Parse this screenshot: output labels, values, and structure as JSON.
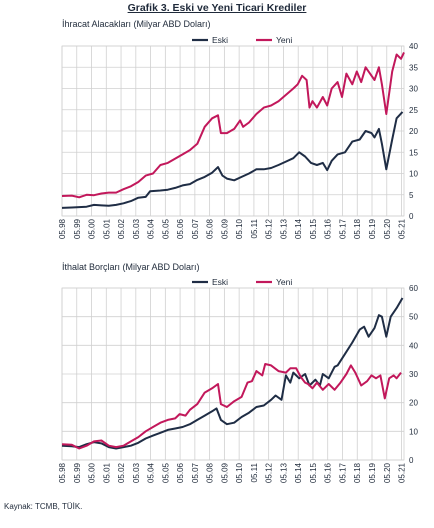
{
  "main_title": "Grafik 3. Eski ve Yeni Ticari Krediler",
  "source": "Kaynak: TCMB, TÜİK.",
  "colors": {
    "eski": "#1f2d45",
    "yeni": "#c2185b",
    "grid": "#d0d0d0"
  },
  "chart_data": [
    {
      "type": "line",
      "title": "İhracat Alacakları (Milyar ABD Doları)",
      "x_ticks": [
        "05.98",
        "05.99",
        "05.00",
        "05.01",
        "05.02",
        "05.03",
        "05.04",
        "05.05",
        "05.06",
        "05.07",
        "05.08",
        "05.09",
        "05.10",
        "05.11",
        "05.12",
        "05.13",
        "05.14",
        "05.15",
        "05.16",
        "05.17",
        "05.18",
        "05.19",
        "05.20",
        "05.21"
      ],
      "y_ticks": [
        "0",
        "5",
        "10",
        "15",
        "20",
        "25",
        "30",
        "35",
        "40"
      ],
      "ylim": [
        0,
        40
      ],
      "xlim": [
        1998.333,
        2021.5
      ],
      "legend": [
        "Eski",
        "Yeni"
      ],
      "series": [
        {
          "name": "Eski",
          "points": [
            [
              1998.33,
              1.9
            ],
            [
              1999.0,
              2.0
            ],
            [
              1999.5,
              2.1
            ],
            [
              2000.0,
              2.2
            ],
            [
              2000.5,
              2.6
            ],
            [
              2001.0,
              2.5
            ],
            [
              2001.5,
              2.4
            ],
            [
              2002.0,
              2.6
            ],
            [
              2002.5,
              3.0
            ],
            [
              2003.0,
              3.5
            ],
            [
              2003.5,
              4.3
            ],
            [
              2004.0,
              4.5
            ],
            [
              2004.3,
              5.8
            ],
            [
              2005.0,
              6.0
            ],
            [
              2005.5,
              6.2
            ],
            [
              2006.0,
              6.6
            ],
            [
              2006.5,
              7.2
            ],
            [
              2007.0,
              7.5
            ],
            [
              2007.5,
              8.5
            ],
            [
              2008.0,
              9.2
            ],
            [
              2008.5,
              10.2
            ],
            [
              2008.9,
              11.5
            ],
            [
              2009.2,
              9.5
            ],
            [
              2009.5,
              8.8
            ],
            [
              2010.0,
              8.4
            ],
            [
              2010.5,
              9.2
            ],
            [
              2011.0,
              10.0
            ],
            [
              2011.5,
              11.0
            ],
            [
              2012.0,
              11.0
            ],
            [
              2012.5,
              11.3
            ],
            [
              2013.0,
              12.0
            ],
            [
              2013.5,
              12.8
            ],
            [
              2014.0,
              13.6
            ],
            [
              2014.4,
              15.0
            ],
            [
              2014.8,
              14.0
            ],
            [
              2015.2,
              12.5
            ],
            [
              2015.6,
              12.0
            ],
            [
              2016.0,
              12.5
            ],
            [
              2016.3,
              10.8
            ],
            [
              2016.6,
              13.0
            ],
            [
              2017.0,
              14.5
            ],
            [
              2017.5,
              15.0
            ],
            [
              2018.0,
              17.5
            ],
            [
              2018.5,
              18.0
            ],
            [
              2018.9,
              20.0
            ],
            [
              2019.3,
              19.5
            ],
            [
              2019.5,
              18.5
            ],
            [
              2019.8,
              20.5
            ],
            [
              2020.0,
              17.0
            ],
            [
              2020.3,
              11.0
            ],
            [
              2020.7,
              18.0
            ],
            [
              2021.0,
              23.0
            ],
            [
              2021.4,
              24.5
            ]
          ]
        },
        {
          "name": "Yeni",
          "points": [
            [
              1998.33,
              4.7
            ],
            [
              1999.0,
              4.8
            ],
            [
              1999.5,
              4.4
            ],
            [
              2000.0,
              5.0
            ],
            [
              2000.5,
              4.9
            ],
            [
              2001.0,
              5.3
            ],
            [
              2001.5,
              5.5
            ],
            [
              2002.0,
              5.5
            ],
            [
              2002.5,
              6.3
            ],
            [
              2003.0,
              7.0
            ],
            [
              2003.5,
              8.0
            ],
            [
              2004.0,
              9.5
            ],
            [
              2004.5,
              10.0
            ],
            [
              2005.0,
              12.0
            ],
            [
              2005.5,
              12.5
            ],
            [
              2006.0,
              13.5
            ],
            [
              2006.5,
              14.5
            ],
            [
              2007.0,
              15.5
            ],
            [
              2007.5,
              17.0
            ],
            [
              2008.0,
              21.0
            ],
            [
              2008.5,
              23.0
            ],
            [
              2008.9,
              23.7
            ],
            [
              2009.1,
              19.5
            ],
            [
              2009.5,
              19.5
            ],
            [
              2010.0,
              20.5
            ],
            [
              2010.4,
              22.5
            ],
            [
              2010.6,
              21.0
            ],
            [
              2011.0,
              22.0
            ],
            [
              2011.5,
              24.0
            ],
            [
              2012.0,
              25.5
            ],
            [
              2012.5,
              26.0
            ],
            [
              2013.0,
              27.0
            ],
            [
              2013.5,
              28.5
            ],
            [
              2014.0,
              30.0
            ],
            [
              2014.3,
              31.0
            ],
            [
              2014.6,
              33.0
            ],
            [
              2014.9,
              32.0
            ],
            [
              2015.1,
              25.5
            ],
            [
              2015.3,
              27.0
            ],
            [
              2015.6,
              25.5
            ],
            [
              2016.0,
              28.0
            ],
            [
              2016.3,
              26.0
            ],
            [
              2016.6,
              30.0
            ],
            [
              2017.0,
              31.5
            ],
            [
              2017.3,
              28.0
            ],
            [
              2017.6,
              33.5
            ],
            [
              2018.0,
              31.0
            ],
            [
              2018.3,
              34.0
            ],
            [
              2018.6,
              31.5
            ],
            [
              2018.9,
              35.0
            ],
            [
              2019.2,
              33.5
            ],
            [
              2019.5,
              32.0
            ],
            [
              2019.8,
              35.0
            ],
            [
              2020.0,
              31.0
            ],
            [
              2020.3,
              24.0
            ],
            [
              2020.7,
              34.0
            ],
            [
              2021.0,
              38.0
            ],
            [
              2021.3,
              37.0
            ],
            [
              2021.5,
              38.5
            ]
          ]
        }
      ]
    },
    {
      "type": "line",
      "title": "İthalat Borçları (Milyar ABD Doları)",
      "x_ticks": [
        "05.98",
        "05.99",
        "05.00",
        "05.01",
        "05.02",
        "05.03",
        "05.04",
        "05.05",
        "05.06",
        "05.07",
        "05.08",
        "05.09",
        "05.10",
        "05.11",
        "05.12",
        "05.13",
        "05.14",
        "05.15",
        "05.16",
        "05.17",
        "05.18",
        "05.19",
        "05.20",
        "05.21"
      ],
      "y_ticks": [
        "0",
        "10",
        "20",
        "30",
        "40",
        "50",
        "60"
      ],
      "ylim": [
        0,
        60
      ],
      "xlim": [
        1998.333,
        2021.5
      ],
      "legend": [
        "Eski",
        "Yeni"
      ],
      "series": [
        {
          "name": "Eski",
          "points": [
            [
              1998.33,
              5.0
            ],
            [
              1999.0,
              4.8
            ],
            [
              1999.5,
              4.5
            ],
            [
              2000.0,
              5.5
            ],
            [
              2000.5,
              6.2
            ],
            [
              2001.0,
              5.8
            ],
            [
              2001.5,
              4.5
            ],
            [
              2002.0,
              4.0
            ],
            [
              2002.5,
              4.5
            ],
            [
              2003.0,
              5.0
            ],
            [
              2003.5,
              6.0
            ],
            [
              2004.0,
              7.5
            ],
            [
              2004.5,
              8.5
            ],
            [
              2005.0,
              9.5
            ],
            [
              2005.5,
              10.5
            ],
            [
              2006.0,
              11.0
            ],
            [
              2006.5,
              11.5
            ],
            [
              2007.0,
              12.5
            ],
            [
              2007.5,
              14.0
            ],
            [
              2008.0,
              15.5
            ],
            [
              2008.5,
              17.0
            ],
            [
              2008.8,
              18.0
            ],
            [
              2009.1,
              14.0
            ],
            [
              2009.5,
              12.5
            ],
            [
              2010.0,
              13.0
            ],
            [
              2010.5,
              15.0
            ],
            [
              2011.0,
              16.5
            ],
            [
              2011.5,
              18.5
            ],
            [
              2012.0,
              19.0
            ],
            [
              2012.5,
              21.0
            ],
            [
              2012.8,
              22.5
            ],
            [
              2013.2,
              21.0
            ],
            [
              2013.5,
              29.5
            ],
            [
              2013.8,
              27.0
            ],
            [
              2014.0,
              30.5
            ],
            [
              2014.4,
              28.5
            ],
            [
              2014.8,
              30.0
            ],
            [
              2015.1,
              26.0
            ],
            [
              2015.5,
              28.0
            ],
            [
              2015.8,
              26.0
            ],
            [
              2016.0,
              30.0
            ],
            [
              2016.4,
              28.5
            ],
            [
              2016.8,
              32.5
            ],
            [
              2017.0,
              33.0
            ],
            [
              2017.5,
              37.0
            ],
            [
              2018.0,
              41.0
            ],
            [
              2018.5,
              45.5
            ],
            [
              2018.8,
              46.5
            ],
            [
              2019.1,
              43.0
            ],
            [
              2019.5,
              46.0
            ],
            [
              2019.8,
              50.5
            ],
            [
              2020.0,
              50.0
            ],
            [
              2020.3,
              43.0
            ],
            [
              2020.6,
              50.0
            ],
            [
              2021.0,
              53.0
            ],
            [
              2021.4,
              56.5
            ]
          ]
        },
        {
          "name": "Yeni",
          "points": [
            [
              1998.33,
              5.5
            ],
            [
              1999.0,
              5.3
            ],
            [
              1999.5,
              4.0
            ],
            [
              2000.0,
              5.0
            ],
            [
              2000.5,
              6.5
            ],
            [
              2001.0,
              6.8
            ],
            [
              2001.5,
              5.0
            ],
            [
              2002.0,
              4.5
            ],
            [
              2002.5,
              5.0
            ],
            [
              2003.0,
              6.5
            ],
            [
              2003.5,
              8.0
            ],
            [
              2004.0,
              10.0
            ],
            [
              2004.5,
              11.5
            ],
            [
              2005.0,
              13.0
            ],
            [
              2005.5,
              14.0
            ],
            [
              2006.0,
              14.5
            ],
            [
              2006.3,
              16.0
            ],
            [
              2006.7,
              15.5
            ],
            [
              2007.0,
              17.5
            ],
            [
              2007.5,
              19.5
            ],
            [
              2008.0,
              23.5
            ],
            [
              2008.5,
              25.0
            ],
            [
              2008.9,
              26.5
            ],
            [
              2009.1,
              19.5
            ],
            [
              2009.5,
              18.5
            ],
            [
              2010.0,
              20.5
            ],
            [
              2010.5,
              22.0
            ],
            [
              2010.9,
              27.0
            ],
            [
              2011.2,
              27.5
            ],
            [
              2011.5,
              31.0
            ],
            [
              2011.9,
              29.5
            ],
            [
              2012.1,
              33.5
            ],
            [
              2012.5,
              33.0
            ],
            [
              2013.0,
              31.0
            ],
            [
              2013.5,
              30.5
            ],
            [
              2013.8,
              32.0
            ],
            [
              2014.2,
              32.0
            ],
            [
              2014.5,
              29.0
            ],
            [
              2014.8,
              27.0
            ],
            [
              2015.0,
              26.5
            ],
            [
              2015.3,
              25.0
            ],
            [
              2015.6,
              27.0
            ],
            [
              2016.0,
              24.5
            ],
            [
              2016.4,
              26.5
            ],
            [
              2016.8,
              24.5
            ],
            [
              2017.2,
              27.0
            ],
            [
              2017.6,
              30.0
            ],
            [
              2017.9,
              33.0
            ],
            [
              2018.2,
              30.5
            ],
            [
              2018.6,
              26.0
            ],
            [
              2019.0,
              27.5
            ],
            [
              2019.3,
              29.5
            ],
            [
              2019.6,
              28.5
            ],
            [
              2019.9,
              29.5
            ],
            [
              2020.2,
              21.5
            ],
            [
              2020.5,
              28.5
            ],
            [
              2020.8,
              29.5
            ],
            [
              2021.0,
              28.5
            ],
            [
              2021.3,
              30.5
            ]
          ]
        }
      ]
    }
  ]
}
